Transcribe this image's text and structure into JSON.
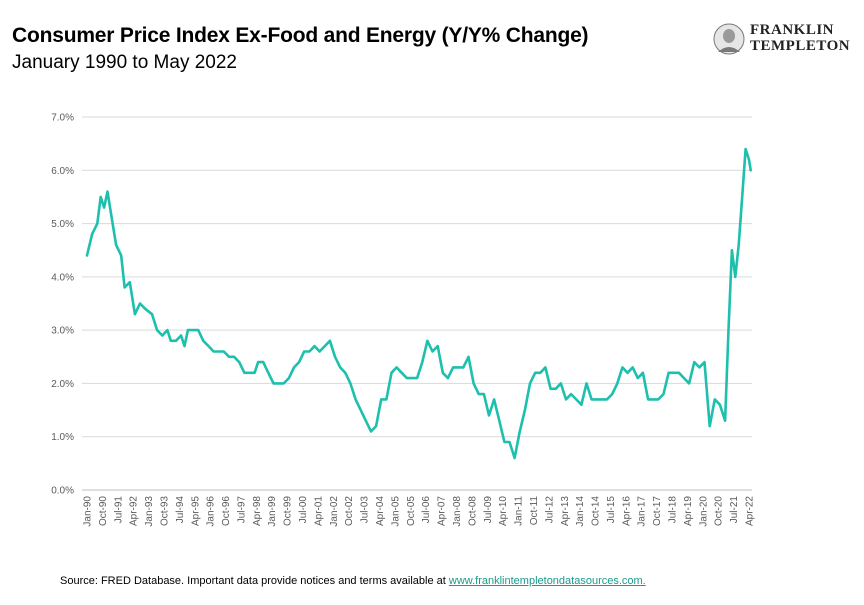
{
  "header": {
    "title": "Consumer Price Index Ex-Food and Energy (Y/Y% Change)",
    "subtitle": "January 1990 to May 2022"
  },
  "logo": {
    "line1": "FRANKLIN",
    "line2": "TEMPLETON",
    "icon": "franklin-portrait-icon"
  },
  "footer": {
    "source_prefix": "Source: FRED Database. Important data provide notices and terms available at ",
    "source_link": "www.franklintempletondatasources.com."
  },
  "colors": {
    "line": "#1dbfad",
    "grid": "#d9d9d9",
    "link": "#1a9a8a"
  },
  "chart_data": {
    "type": "line",
    "title": "Consumer Price Index Ex-Food and Energy (Y/Y% Change)",
    "xlabel": "",
    "ylabel": "",
    "ylim": [
      0,
      7
    ],
    "y_ticks": [
      "0.0%",
      "1.0%",
      "2.0%",
      "3.0%",
      "4.0%",
      "5.0%",
      "6.0%",
      "7.0%"
    ],
    "x_ticks": [
      "Jan-90",
      "Oct-90",
      "Jul-91",
      "Apr-92",
      "Jan-93",
      "Oct-93",
      "Jul-94",
      "Apr-95",
      "Jan-96",
      "Oct-96",
      "Jul-97",
      "Apr-98",
      "Jan-99",
      "Oct-99",
      "Jul-00",
      "Apr-01",
      "Jan-02",
      "Oct-02",
      "Jul-03",
      "Apr-04",
      "Jan-05",
      "Oct-05",
      "Jul-06",
      "Apr-07",
      "Jan-08",
      "Oct-08",
      "Jul-09",
      "Apr-10",
      "Jan-11",
      "Oct-11",
      "Jul-12",
      "Apr-13",
      "Jan-14",
      "Oct-14",
      "Jul-15",
      "Apr-16",
      "Jan-17",
      "Oct-17",
      "Jul-18",
      "Apr-19",
      "Jan-20",
      "Oct-20",
      "Jul-21",
      "Apr-22"
    ],
    "grid": true,
    "legend": "none",
    "series": [
      {
        "points": [
          [
            "1990-01",
            4.4
          ],
          [
            "1990-04",
            4.8
          ],
          [
            "1990-07",
            5.0
          ],
          [
            "1990-09",
            5.5
          ],
          [
            "1990-11",
            5.3
          ],
          [
            "1991-01",
            5.6
          ],
          [
            "1991-03",
            5.2
          ],
          [
            "1991-06",
            4.6
          ],
          [
            "1991-09",
            4.4
          ],
          [
            "1991-11",
            3.8
          ],
          [
            "1992-02",
            3.9
          ],
          [
            "1992-05",
            3.3
          ],
          [
            "1992-08",
            3.5
          ],
          [
            "1992-11",
            3.4
          ],
          [
            "1993-03",
            3.3
          ],
          [
            "1993-06",
            3.0
          ],
          [
            "1993-09",
            2.9
          ],
          [
            "1993-12",
            3.0
          ],
          [
            "1994-02",
            2.8
          ],
          [
            "1994-05",
            2.8
          ],
          [
            "1994-08",
            2.9
          ],
          [
            "1994-10",
            2.7
          ],
          [
            "1994-12",
            3.0
          ],
          [
            "1995-03",
            3.0
          ],
          [
            "1995-06",
            3.0
          ],
          [
            "1995-09",
            2.8
          ],
          [
            "1995-12",
            2.7
          ],
          [
            "1996-03",
            2.6
          ],
          [
            "1996-06",
            2.6
          ],
          [
            "1996-09",
            2.6
          ],
          [
            "1996-12",
            2.5
          ],
          [
            "1997-03",
            2.5
          ],
          [
            "1997-06",
            2.4
          ],
          [
            "1997-09",
            2.2
          ],
          [
            "1997-12",
            2.2
          ],
          [
            "1998-03",
            2.2
          ],
          [
            "1998-05",
            2.4
          ],
          [
            "1998-08",
            2.4
          ],
          [
            "1998-11",
            2.2
          ],
          [
            "1999-02",
            2.0
          ],
          [
            "1999-05",
            2.0
          ],
          [
            "1999-08",
            2.0
          ],
          [
            "1999-11",
            2.1
          ],
          [
            "2000-02",
            2.3
          ],
          [
            "2000-05",
            2.4
          ],
          [
            "2000-08",
            2.6
          ],
          [
            "2000-11",
            2.6
          ],
          [
            "2001-02",
            2.7
          ],
          [
            "2001-05",
            2.6
          ],
          [
            "2001-08",
            2.7
          ],
          [
            "2001-11",
            2.8
          ],
          [
            "2002-02",
            2.5
          ],
          [
            "2002-05",
            2.3
          ],
          [
            "2002-08",
            2.2
          ],
          [
            "2002-11",
            2.0
          ],
          [
            "2003-02",
            1.7
          ],
          [
            "2003-05",
            1.5
          ],
          [
            "2003-08",
            1.3
          ],
          [
            "2003-11",
            1.1
          ],
          [
            "2004-02",
            1.2
          ],
          [
            "2004-05",
            1.7
          ],
          [
            "2004-08",
            1.7
          ],
          [
            "2004-11",
            2.2
          ],
          [
            "2005-02",
            2.3
          ],
          [
            "2005-05",
            2.2
          ],
          [
            "2005-08",
            2.1
          ],
          [
            "2005-11",
            2.1
          ],
          [
            "2006-02",
            2.1
          ],
          [
            "2006-05",
            2.4
          ],
          [
            "2006-08",
            2.8
          ],
          [
            "2006-11",
            2.6
          ],
          [
            "2007-02",
            2.7
          ],
          [
            "2007-05",
            2.2
          ],
          [
            "2007-08",
            2.1
          ],
          [
            "2007-11",
            2.3
          ],
          [
            "2008-02",
            2.3
          ],
          [
            "2008-05",
            2.3
          ],
          [
            "2008-08",
            2.5
          ],
          [
            "2008-11",
            2.0
          ],
          [
            "2009-02",
            1.8
          ],
          [
            "2009-05",
            1.8
          ],
          [
            "2009-08",
            1.4
          ],
          [
            "2009-11",
            1.7
          ],
          [
            "2010-02",
            1.3
          ],
          [
            "2010-05",
            0.9
          ],
          [
            "2010-08",
            0.9
          ],
          [
            "2010-11",
            0.6
          ],
          [
            "2011-02",
            1.1
          ],
          [
            "2011-05",
            1.5
          ],
          [
            "2011-08",
            2.0
          ],
          [
            "2011-11",
            2.2
          ],
          [
            "2012-02",
            2.2
          ],
          [
            "2012-05",
            2.3
          ],
          [
            "2012-08",
            1.9
          ],
          [
            "2012-11",
            1.9
          ],
          [
            "2013-02",
            2.0
          ],
          [
            "2013-05",
            1.7
          ],
          [
            "2013-08",
            1.8
          ],
          [
            "2013-11",
            1.7
          ],
          [
            "2014-02",
            1.6
          ],
          [
            "2014-05",
            2.0
          ],
          [
            "2014-08",
            1.7
          ],
          [
            "2014-11",
            1.7
          ],
          [
            "2015-02",
            1.7
          ],
          [
            "2015-05",
            1.7
          ],
          [
            "2015-08",
            1.8
          ],
          [
            "2015-11",
            2.0
          ],
          [
            "2016-02",
            2.3
          ],
          [
            "2016-05",
            2.2
          ],
          [
            "2016-08",
            2.3
          ],
          [
            "2016-11",
            2.1
          ],
          [
            "2017-02",
            2.2
          ],
          [
            "2017-05",
            1.7
          ],
          [
            "2017-08",
            1.7
          ],
          [
            "2017-11",
            1.7
          ],
          [
            "2018-02",
            1.8
          ],
          [
            "2018-05",
            2.2
          ],
          [
            "2018-08",
            2.2
          ],
          [
            "2018-11",
            2.2
          ],
          [
            "2019-02",
            2.1
          ],
          [
            "2019-05",
            2.0
          ],
          [
            "2019-08",
            2.4
          ],
          [
            "2019-11",
            2.3
          ],
          [
            "2020-02",
            2.4
          ],
          [
            "2020-05",
            1.2
          ],
          [
            "2020-08",
            1.7
          ],
          [
            "2020-11",
            1.6
          ],
          [
            "2021-02",
            1.3
          ],
          [
            "2021-04",
            3.0
          ],
          [
            "2021-06",
            4.5
          ],
          [
            "2021-08",
            4.0
          ],
          [
            "2021-10",
            4.6
          ],
          [
            "2021-12",
            5.5
          ],
          [
            "2022-02",
            6.4
          ],
          [
            "2022-04",
            6.2
          ],
          [
            "2022-05",
            6.0
          ]
        ]
      }
    ]
  }
}
